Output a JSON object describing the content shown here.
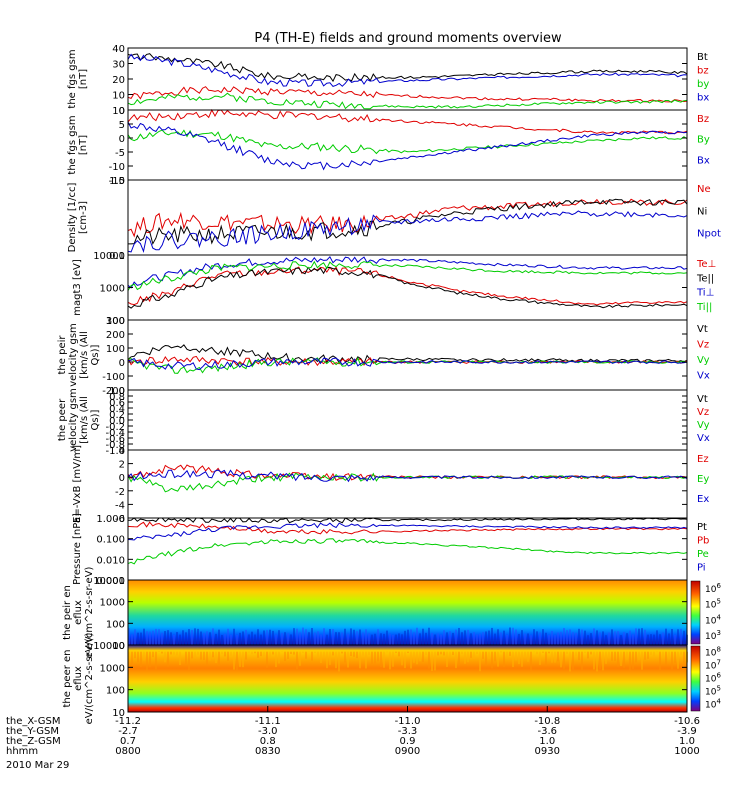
{
  "title": "P4 (TH-E) fields and ground moments overview",
  "date_label": "2010 Mar 29",
  "xaxis": {
    "rows": [
      {
        "label": "the_X-GSM",
        "values": [
          "-11.2",
          "-11.1",
          "-11.0",
          "-10.8",
          "-10.6"
        ]
      },
      {
        "label": "the_Y-GSM",
        "values": [
          "-2.7",
          "-3.0",
          "-3.3",
          "-3.6",
          "-3.9"
        ]
      },
      {
        "label": "the_Z-GSM",
        "values": [
          "0.7",
          "0.8",
          "0.9",
          "1.0",
          "1.0"
        ]
      },
      {
        "label": "hhmm",
        "values": [
          "0800",
          "0830",
          "0900",
          "0930",
          "1000"
        ]
      }
    ]
  },
  "colors": {
    "black": "#000000",
    "red": "#e00000",
    "green": "#00cc00",
    "blue": "#0000cc"
  },
  "chart_data": [
    {
      "type": "line",
      "ylabel": "the fgs gsm [nT]",
      "ylim": [
        0,
        40
      ],
      "ticks": [
        "40",
        "30",
        "20",
        "10",
        "0"
      ],
      "x": [
        "08:00",
        "08:10",
        "08:20",
        "08:30",
        "08:40",
        "08:50",
        "09:00",
        "09:10",
        "09:20",
        "09:30",
        "09:40",
        "09:50",
        "10:00"
      ],
      "series": [
        {
          "name": "Bt",
          "color": "#000000",
          "values": [
            35,
            33,
            29,
            22,
            21,
            21,
            21,
            22,
            23,
            24,
            25,
            25,
            24
          ]
        },
        {
          "name": "bz",
          "color": "#e00000",
          "values": [
            8,
            12,
            13,
            12,
            11,
            10,
            9,
            8,
            7,
            7,
            6,
            6,
            6
          ]
        },
        {
          "name": "by",
          "color": "#00cc00",
          "values": [
            5,
            8,
            9,
            6,
            4,
            3,
            2,
            2,
            3,
            4,
            5,
            5,
            6
          ]
        },
        {
          "name": "bx",
          "color": "#0000cc",
          "values": [
            34,
            31,
            25,
            18,
            17,
            18,
            19,
            20,
            21,
            22,
            23,
            23,
            22
          ]
        }
      ]
    },
    {
      "type": "line",
      "ylabel": "the fgs gsm [nT]",
      "ylim": [
        -15,
        10
      ],
      "ticks": [
        "10",
        "5",
        "0",
        "-5",
        "-10",
        "-15"
      ],
      "x": [
        "08:00",
        "08:10",
        "08:20",
        "08:30",
        "08:40",
        "08:50",
        "09:00",
        "09:10",
        "09:20",
        "09:30",
        "09:40",
        "09:50",
        "10:00"
      ],
      "series": [
        {
          "name": "Bz",
          "color": "#e00000",
          "values": [
            7,
            8,
            9,
            8,
            8,
            7,
            6,
            5,
            4,
            3,
            2,
            2,
            2
          ]
        },
        {
          "name": "By",
          "color": "#00cc00",
          "values": [
            0,
            2,
            1,
            -3,
            -3,
            -4,
            -5,
            -4,
            -3,
            -2,
            -1,
            0,
            0
          ]
        },
        {
          "name": "Bx",
          "color": "#0000cc",
          "values": [
            5,
            2,
            -2,
            -8,
            -10,
            -9,
            -7,
            -5,
            -3,
            -1,
            1,
            2,
            2
          ]
        }
      ]
    },
    {
      "type": "line",
      "ylabel": "Density [1/cc] [cm-3]",
      "ylim": [
        0.1,
        1.0
      ],
      "log": true,
      "ticks": [
        "1.0",
        "0.1"
      ],
      "x": [
        "08:00",
        "08:10",
        "08:20",
        "08:30",
        "08:40",
        "08:50",
        "09:00",
        "09:10",
        "09:20",
        "09:30",
        "09:40",
        "09:50",
        "10:00"
      ],
      "series": [
        {
          "name": "Ne",
          "color": "#e00000",
          "values": [
            0.22,
            0.3,
            0.28,
            0.26,
            0.25,
            0.26,
            0.33,
            0.42,
            0.44,
            0.48,
            0.53,
            0.5,
            0.51
          ]
        },
        {
          "name": "Ni",
          "color": "#000000",
          "values": [
            0.16,
            0.18,
            0.19,
            0.2,
            0.21,
            0.23,
            0.28,
            0.36,
            0.42,
            0.47,
            0.52,
            0.5,
            0.51
          ]
        },
        {
          "name": "Npot",
          "color": "#0000cc",
          "values": [
            0.14,
            0.16,
            0.17,
            0.19,
            0.22,
            0.25,
            0.28,
            0.3,
            0.32,
            0.34,
            0.36,
            0.35,
            0.34
          ]
        }
      ]
    },
    {
      "type": "line",
      "ylabel": "magt3 [eV]",
      "ylim": [
        100,
        10000
      ],
      "log": true,
      "ticks": [
        "10000",
        "1000",
        "100"
      ],
      "x": [
        "08:00",
        "08:10",
        "08:20",
        "08:30",
        "08:40",
        "08:50",
        "09:00",
        "09:10",
        "09:20",
        "09:30",
        "09:40",
        "09:50",
        "10:00"
      ],
      "series": [
        {
          "name": "Te⊥",
          "color": "#e00000",
          "values": [
            300,
            700,
            2500,
            3000,
            3500,
            3000,
            1500,
            800,
            550,
            400,
            300,
            350,
            350
          ]
        },
        {
          "name": "Te||",
          "color": "#000000",
          "values": [
            250,
            600,
            2000,
            3000,
            3500,
            3000,
            1300,
            700,
            450,
            330,
            250,
            280,
            300
          ]
        },
        {
          "name": "Ti⊥",
          "color": "#0000cc",
          "values": [
            1200,
            2500,
            5000,
            6500,
            7000,
            7500,
            7000,
            6000,
            5000,
            4500,
            4000,
            4000,
            4000
          ]
        },
        {
          "name": "Ti||",
          "color": "#00cc00",
          "values": [
            900,
            2000,
            4000,
            4500,
            5000,
            5000,
            4500,
            3800,
            3200,
            3000,
            2800,
            2800,
            2800
          ]
        }
      ]
    },
    {
      "type": "line",
      "ylabel": "the peir velocity gsm [km/s (All Qs)]",
      "ylim": [
        -200,
        300
      ],
      "ticks": [
        "300",
        "200",
        "100",
        "0",
        "-100",
        "-200"
      ],
      "x": [
        "08:00",
        "08:10",
        "08:20",
        "08:30",
        "08:40",
        "08:50",
        "09:00",
        "09:10",
        "09:20",
        "09:30",
        "09:40",
        "09:50",
        "10:00"
      ],
      "series": [
        {
          "name": "Vt",
          "color": "#000000",
          "values": [
            40,
            120,
            80,
            40,
            20,
            20,
            20,
            15,
            15,
            15,
            10,
            10,
            10
          ]
        },
        {
          "name": "Vz",
          "color": "#e00000",
          "values": [
            0,
            20,
            10,
            0,
            0,
            0,
            0,
            0,
            0,
            0,
            0,
            0,
            0
          ]
        },
        {
          "name": "Vy",
          "color": "#00cc00",
          "values": [
            0,
            -60,
            -40,
            0,
            0,
            0,
            0,
            0,
            0,
            0,
            0,
            0,
            0
          ]
        },
        {
          "name": "Vx",
          "color": "#0000cc",
          "values": [
            0,
            -30,
            -20,
            0,
            0,
            0,
            0,
            0,
            0,
            0,
            0,
            0,
            0
          ]
        }
      ]
    },
    {
      "type": "line",
      "ylabel": "the peer velocity gsm [km/s (All Qs)]",
      "ylim": [
        -1.0,
        1.0
      ],
      "ticks": [
        "1.0",
        "0.8",
        "0.6",
        "0.4",
        "0.2",
        "0.0",
        "-0.2",
        "-0.4",
        "-0.6",
        "-0.8",
        "-1.0"
      ],
      "x": [],
      "series": [
        {
          "name": "Vt",
          "color": "#000000",
          "values": []
        },
        {
          "name": "Vz",
          "color": "#e00000",
          "values": []
        },
        {
          "name": "Vy",
          "color": "#00cc00",
          "values": []
        },
        {
          "name": "Vx",
          "color": "#0000cc",
          "values": []
        }
      ]
    },
    {
      "type": "line",
      "ylabel": "E=-VxB [mV/m]",
      "ylim": [
        -6,
        4
      ],
      "ticks": [
        "4",
        "2",
        "0",
        "-2",
        "-4",
        "-6"
      ],
      "x": [
        "08:00",
        "08:10",
        "08:20",
        "08:30",
        "08:40",
        "08:50",
        "09:00",
        "09:10",
        "09:20",
        "09:30",
        "09:40",
        "09:50",
        "10:00"
      ],
      "series": [
        {
          "name": "Ez",
          "color": "#e00000",
          "values": [
            0,
            1.5,
            0.8,
            0.3,
            0.1,
            0.1,
            0,
            0,
            0,
            0,
            0,
            0,
            0
          ]
        },
        {
          "name": "Ey",
          "color": "#00cc00",
          "values": [
            0,
            -2,
            -1,
            0,
            0,
            0,
            0,
            0,
            0,
            0,
            0,
            0,
            0
          ]
        },
        {
          "name": "Ex",
          "color": "#0000cc",
          "values": [
            0,
            0.5,
            0.5,
            0.2,
            0,
            0,
            0,
            0,
            0,
            0,
            0,
            0,
            0
          ]
        }
      ]
    },
    {
      "type": "line",
      "ylabel": "Pressure [nPa]",
      "ylim": [
        0.001,
        1.0
      ],
      "log": true,
      "ticks": [
        "1.000",
        "0.100",
        "0.010",
        "0.001"
      ],
      "x": [
        "08:00",
        "08:10",
        "08:20",
        "08:30",
        "08:40",
        "08:50",
        "09:00",
        "09:10",
        "09:20",
        "09:30",
        "09:40",
        "09:50",
        "10:00"
      ],
      "series": [
        {
          "name": "Pt",
          "color": "#000000",
          "values": [
            0.9,
            0.85,
            0.8,
            0.75,
            0.75,
            0.78,
            0.8,
            0.82,
            0.85,
            0.88,
            0.9,
            0.9,
            0.9
          ]
        },
        {
          "name": "Pb",
          "color": "#e00000",
          "values": [
            0.5,
            0.45,
            0.35,
            0.22,
            0.21,
            0.22,
            0.23,
            0.25,
            0.27,
            0.29,
            0.3,
            0.3,
            0.29
          ]
        },
        {
          "name": "Pe",
          "color": "#00cc00",
          "values": [
            0.005,
            0.02,
            0.05,
            0.07,
            0.08,
            0.07,
            0.06,
            0.045,
            0.035,
            0.025,
            0.02,
            0.02,
            0.02
          ]
        },
        {
          "name": "Pi",
          "color": "#0000cc",
          "values": [
            0.08,
            0.15,
            0.3,
            0.4,
            0.45,
            0.45,
            0.42,
            0.4,
            0.38,
            0.36,
            0.34,
            0.34,
            0.34
          ]
        }
      ]
    },
    {
      "type": "heatmap",
      "ylabel": "the peir en eflux eV/(cm^2-s-sr-eV)",
      "ylim": [
        10,
        10000
      ],
      "log": true,
      "ticks": [
        "10000",
        "1000",
        "100",
        "10"
      ],
      "colorbar_ticks": [
        "10^6",
        "10^5",
        "10^4",
        "10^3"
      ]
    },
    {
      "type": "heatmap",
      "ylabel": "the peer en eflux eV/(cm^2-s-sr-eV)",
      "ylim": [
        10,
        10000
      ],
      "log": true,
      "ticks": [
        "10000",
        "1000",
        "100",
        "10"
      ],
      "colorbar_ticks": [
        "10^8",
        "10^7",
        "10^6",
        "10^5",
        "10^4"
      ]
    }
  ]
}
